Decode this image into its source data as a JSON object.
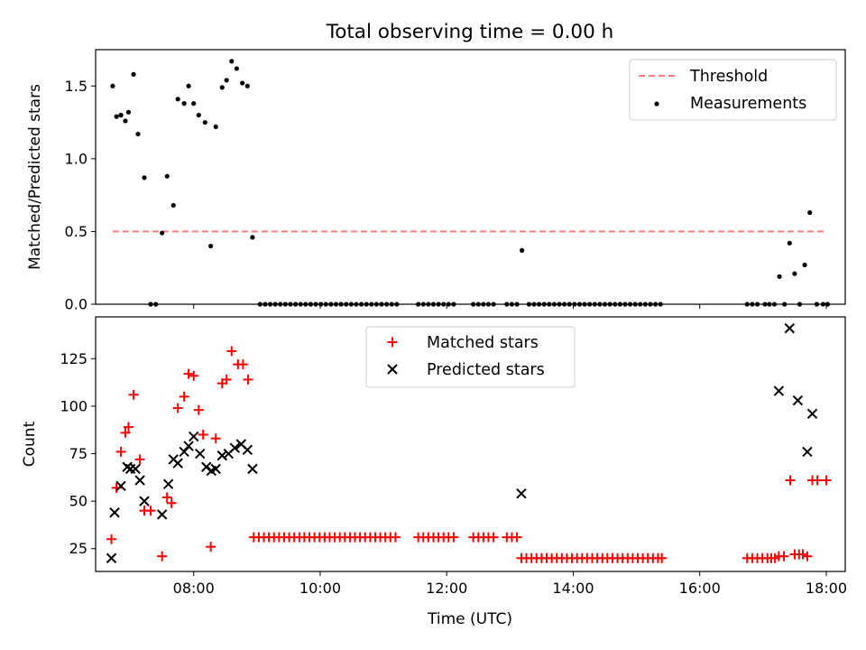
{
  "title": "Total observing time = 0.00 h",
  "colors": {
    "threshold": "#ff7b7b",
    "measurement": "#000000",
    "matched": "#ff0000",
    "predicted": "#000000"
  },
  "chart_data": [
    {
      "type": "scatter",
      "ylabel": "Matched/Predicted stars",
      "xlim": [
        6.45,
        18.3
      ],
      "ylim": [
        0,
        1.75
      ],
      "yticks": [
        0.0,
        0.5,
        1.0,
        1.5
      ],
      "ytick_labels": [
        "0.0",
        "0.5",
        "1.0",
        "1.5"
      ],
      "xticks": [
        8,
        10,
        12,
        14,
        16,
        18
      ],
      "legend": {
        "position": "top-right",
        "entries": [
          "Threshold",
          "Measurements"
        ]
      },
      "threshold": {
        "name": "Threshold",
        "x": [
          6.72,
          18.0
        ],
        "y": 0.5,
        "style": "dashed"
      },
      "series": [
        {
          "name": "Measurements",
          "marker": "dot",
          "points": [
            [
              6.72,
              1.5
            ],
            [
              6.78,
              1.29
            ],
            [
              6.85,
              1.3
            ],
            [
              6.92,
              1.26
            ],
            [
              6.97,
              1.32
            ],
            [
              7.05,
              1.58
            ],
            [
              7.12,
              1.17
            ],
            [
              7.22,
              0.87
            ],
            [
              7.32,
              0.0
            ],
            [
              7.4,
              0.0
            ],
            [
              7.5,
              0.49
            ],
            [
              7.58,
              0.88
            ],
            [
              7.68,
              0.68
            ],
            [
              7.75,
              1.41
            ],
            [
              7.85,
              1.38
            ],
            [
              7.92,
              1.5
            ],
            [
              8.0,
              1.38
            ],
            [
              8.08,
              1.3
            ],
            [
              8.18,
              1.25
            ],
            [
              8.27,
              0.4
            ],
            [
              8.35,
              1.22
            ],
            [
              8.45,
              1.49
            ],
            [
              8.52,
              1.54
            ],
            [
              8.6,
              1.67
            ],
            [
              8.68,
              1.62
            ],
            [
              8.77,
              1.52
            ],
            [
              8.85,
              1.5
            ],
            [
              8.93,
              0.46
            ],
            [
              9.05,
              0.0
            ],
            [
              9.13,
              0.0
            ],
            [
              9.21,
              0.0
            ],
            [
              9.29,
              0.0
            ],
            [
              9.37,
              0.0
            ],
            [
              9.45,
              0.0
            ],
            [
              9.53,
              0.0
            ],
            [
              9.61,
              0.0
            ],
            [
              9.69,
              0.0
            ],
            [
              9.77,
              0.0
            ],
            [
              9.85,
              0.0
            ],
            [
              9.93,
              0.0
            ],
            [
              10.01,
              0.0
            ],
            [
              10.09,
              0.0
            ],
            [
              10.17,
              0.0
            ],
            [
              10.25,
              0.0
            ],
            [
              10.33,
              0.0
            ],
            [
              10.41,
              0.0
            ],
            [
              10.49,
              0.0
            ],
            [
              10.57,
              0.0
            ],
            [
              10.65,
              0.0
            ],
            [
              10.73,
              0.0
            ],
            [
              10.81,
              0.0
            ],
            [
              10.89,
              0.0
            ],
            [
              10.97,
              0.0
            ],
            [
              11.05,
              0.0
            ],
            [
              11.13,
              0.0
            ],
            [
              11.21,
              0.0
            ],
            [
              11.55,
              0.0
            ],
            [
              11.63,
              0.0
            ],
            [
              11.71,
              0.0
            ],
            [
              11.79,
              0.0
            ],
            [
              11.87,
              0.0
            ],
            [
              11.95,
              0.0
            ],
            [
              12.03,
              0.0
            ],
            [
              12.11,
              0.0
            ],
            [
              12.42,
              0.0
            ],
            [
              12.5,
              0.0
            ],
            [
              12.58,
              0.0
            ],
            [
              12.66,
              0.0
            ],
            [
              12.74,
              0.0
            ],
            [
              12.95,
              0.0
            ],
            [
              13.03,
              0.0
            ],
            [
              13.11,
              0.0
            ],
            [
              13.19,
              0.37
            ],
            [
              13.3,
              0.0
            ],
            [
              13.38,
              0.0
            ],
            [
              13.46,
              0.0
            ],
            [
              13.54,
              0.0
            ],
            [
              13.62,
              0.0
            ],
            [
              13.7,
              0.0
            ],
            [
              13.78,
              0.0
            ],
            [
              13.86,
              0.0
            ],
            [
              13.94,
              0.0
            ],
            [
              14.02,
              0.0
            ],
            [
              14.1,
              0.0
            ],
            [
              14.18,
              0.0
            ],
            [
              14.26,
              0.0
            ],
            [
              14.34,
              0.0
            ],
            [
              14.42,
              0.0
            ],
            [
              14.5,
              0.0
            ],
            [
              14.58,
              0.0
            ],
            [
              14.66,
              0.0
            ],
            [
              14.74,
              0.0
            ],
            [
              14.82,
              0.0
            ],
            [
              14.9,
              0.0
            ],
            [
              14.98,
              0.0
            ],
            [
              15.06,
              0.0
            ],
            [
              15.14,
              0.0
            ],
            [
              15.22,
              0.0
            ],
            [
              15.3,
              0.0
            ],
            [
              15.38,
              0.0
            ],
            [
              16.75,
              0.0
            ],
            [
              16.83,
              0.0
            ],
            [
              16.91,
              0.0
            ],
            [
              17.03,
              0.0
            ],
            [
              17.1,
              0.0
            ],
            [
              17.18,
              0.0
            ],
            [
              17.26,
              0.19
            ],
            [
              17.34,
              0.0
            ],
            [
              17.42,
              0.42
            ],
            [
              17.5,
              0.21
            ],
            [
              17.58,
              0.0
            ],
            [
              17.66,
              0.27
            ],
            [
              17.74,
              0.63
            ],
            [
              17.85,
              0.0
            ],
            [
              17.95,
              0.0
            ],
            [
              18.02,
              0.0
            ]
          ]
        }
      ]
    },
    {
      "type": "scatter",
      "xlabel": "Time (UTC)",
      "ylabel": "Count",
      "xlim": [
        6.45,
        18.3
      ],
      "ylim": [
        13,
        147
      ],
      "yticks": [
        25,
        50,
        75,
        100,
        125
      ],
      "ytick_labels": [
        "25",
        "50",
        "75",
        "100",
        "125"
      ],
      "xticks": [
        8,
        10,
        12,
        14,
        16,
        18
      ],
      "xtick_labels": [
        "08:00",
        "10:00",
        "12:00",
        "14:00",
        "16:00",
        "18:00"
      ],
      "legend": {
        "position": "upper-center",
        "entries": [
          "Matched stars",
          "Predicted stars"
        ]
      },
      "series": [
        {
          "name": "Matched stars",
          "marker": "plus",
          "points": [
            [
              6.7,
              30
            ],
            [
              6.78,
              57
            ],
            [
              6.85,
              76
            ],
            [
              6.92,
              86
            ],
            [
              6.97,
              89
            ],
            [
              7.05,
              106
            ],
            [
              7.15,
              72
            ],
            [
              7.22,
              45
            ],
            [
              7.32,
              45
            ],
            [
              7.5,
              21
            ],
            [
              7.58,
              52
            ],
            [
              7.65,
              49
            ],
            [
              7.75,
              99
            ],
            [
              7.85,
              105
            ],
            [
              7.92,
              117
            ],
            [
              8.0,
              116
            ],
            [
              8.08,
              98
            ],
            [
              8.15,
              85
            ],
            [
              8.27,
              26
            ],
            [
              8.35,
              83
            ],
            [
              8.45,
              112
            ],
            [
              8.52,
              114
            ],
            [
              8.6,
              129
            ],
            [
              8.7,
              122
            ],
            [
              8.78,
              122
            ],
            [
              8.86,
              114
            ],
            [
              8.95,
              31
            ],
            [
              9.03,
              31
            ],
            [
              9.11,
              31
            ],
            [
              9.19,
              31
            ],
            [
              9.27,
              31
            ],
            [
              9.35,
              31
            ],
            [
              9.43,
              31
            ],
            [
              9.51,
              31
            ],
            [
              9.59,
              31
            ],
            [
              9.67,
              31
            ],
            [
              9.75,
              31
            ],
            [
              9.83,
              31
            ],
            [
              9.91,
              31
            ],
            [
              9.99,
              31
            ],
            [
              10.07,
              31
            ],
            [
              10.15,
              31
            ],
            [
              10.23,
              31
            ],
            [
              10.31,
              31
            ],
            [
              10.39,
              31
            ],
            [
              10.47,
              31
            ],
            [
              10.55,
              31
            ],
            [
              10.63,
              31
            ],
            [
              10.71,
              31
            ],
            [
              10.79,
              31
            ],
            [
              10.87,
              31
            ],
            [
              10.95,
              31
            ],
            [
              11.03,
              31
            ],
            [
              11.11,
              31
            ],
            [
              11.19,
              31
            ],
            [
              11.55,
              31
            ],
            [
              11.63,
              31
            ],
            [
              11.71,
              31
            ],
            [
              11.79,
              31
            ],
            [
              11.87,
              31
            ],
            [
              11.95,
              31
            ],
            [
              12.03,
              31
            ],
            [
              12.11,
              31
            ],
            [
              12.42,
              31
            ],
            [
              12.5,
              31
            ],
            [
              12.58,
              31
            ],
            [
              12.66,
              31
            ],
            [
              12.74,
              31
            ],
            [
              12.95,
              31
            ],
            [
              13.03,
              31
            ],
            [
              13.11,
              31
            ],
            [
              13.18,
              20
            ],
            [
              13.26,
              20
            ],
            [
              13.34,
              20
            ],
            [
              13.42,
              20
            ],
            [
              13.5,
              20
            ],
            [
              13.58,
              20
            ],
            [
              13.66,
              20
            ],
            [
              13.74,
              20
            ],
            [
              13.82,
              20
            ],
            [
              13.9,
              20
            ],
            [
              13.98,
              20
            ],
            [
              14.06,
              20
            ],
            [
              14.14,
              20
            ],
            [
              14.22,
              20
            ],
            [
              14.3,
              20
            ],
            [
              14.38,
              20
            ],
            [
              14.46,
              20
            ],
            [
              14.54,
              20
            ],
            [
              14.62,
              20
            ],
            [
              14.7,
              20
            ],
            [
              14.78,
              20
            ],
            [
              14.86,
              20
            ],
            [
              14.94,
              20
            ],
            [
              15.02,
              20
            ],
            [
              15.1,
              20
            ],
            [
              15.18,
              20
            ],
            [
              15.26,
              20
            ],
            [
              15.34,
              20
            ],
            [
              15.4,
              20
            ],
            [
              16.75,
              20
            ],
            [
              16.83,
              20
            ],
            [
              16.91,
              20
            ],
            [
              16.99,
              20
            ],
            [
              17.07,
              20
            ],
            [
              17.13,
              20
            ],
            [
              17.19,
              20
            ],
            [
              17.25,
              21
            ],
            [
              17.33,
              21
            ],
            [
              17.43,
              61
            ],
            [
              17.5,
              22
            ],
            [
              17.57,
              22
            ],
            [
              17.63,
              22
            ],
            [
              17.7,
              21
            ],
            [
              17.78,
              61
            ],
            [
              17.86,
              61
            ],
            [
              18.0,
              61
            ]
          ]
        },
        {
          "name": "Predicted stars",
          "marker": "x",
          "points": [
            [
              6.7,
              20
            ],
            [
              6.75,
              44
            ],
            [
              6.85,
              58
            ],
            [
              6.95,
              68
            ],
            [
              7.0,
              67
            ],
            [
              7.08,
              67
            ],
            [
              7.15,
              61
            ],
            [
              7.22,
              50
            ],
            [
              7.5,
              43
            ],
            [
              7.6,
              59
            ],
            [
              7.68,
              72
            ],
            [
              7.75,
              70
            ],
            [
              7.85,
              76
            ],
            [
              7.92,
              79
            ],
            [
              8.0,
              84
            ],
            [
              8.1,
              75
            ],
            [
              8.2,
              68
            ],
            [
              8.28,
              66
            ],
            [
              8.35,
              67
            ],
            [
              8.45,
              74
            ],
            [
              8.55,
              75
            ],
            [
              8.65,
              78
            ],
            [
              8.75,
              80
            ],
            [
              8.85,
              77
            ],
            [
              8.93,
              67
            ],
            [
              13.18,
              54
            ],
            [
              17.25,
              108
            ],
            [
              17.42,
              141
            ],
            [
              17.55,
              103
            ],
            [
              17.7,
              76
            ],
            [
              17.78,
              96
            ]
          ]
        }
      ]
    }
  ]
}
